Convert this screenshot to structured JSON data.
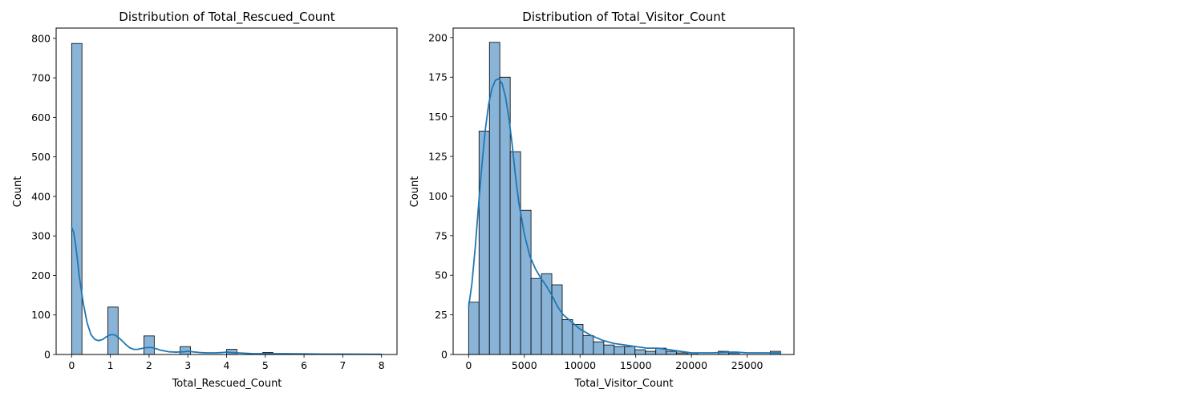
{
  "chart_data": [
    {
      "type": "bar",
      "subtype": "histogram-with-kde",
      "title": "Distribution of Total_Rescued_Count",
      "xlabel": "Total_Rescued_Count",
      "ylabel": "Count",
      "xlim": [
        -0.4,
        8.4
      ],
      "ylim": [
        0,
        826
      ],
      "xticks": [
        0,
        1,
        2,
        3,
        4,
        5,
        6,
        7,
        8
      ],
      "yticks": [
        0,
        100,
        200,
        300,
        400,
        500,
        600,
        700,
        800
      ],
      "grid": false,
      "bar_color": "#89b4d8",
      "line_color": "#1f77b4",
      "bins": [
        {
          "x0": 0.0,
          "x1": 0.2667,
          "count": 787
        },
        {
          "x0": 0.9333,
          "x1": 1.2,
          "count": 120
        },
        {
          "x0": 1.8667,
          "x1": 2.1333,
          "count": 47
        },
        {
          "x0": 2.8,
          "x1": 3.0667,
          "count": 20
        },
        {
          "x0": 4.0,
          "x1": 4.2667,
          "count": 13
        },
        {
          "x0": 4.9333,
          "x1": 5.2,
          "count": 5
        },
        {
          "x0": 5.8667,
          "x1": 6.1333,
          "count": 2
        },
        {
          "x0": 6.8,
          "x1": 7.0667,
          "count": 1
        },
        {
          "x0": 7.7333,
          "x1": 8.0,
          "count": 1
        }
      ],
      "kde": {
        "x": [
          0,
          0.05,
          0.1,
          0.15,
          0.2,
          0.3,
          0.4,
          0.5,
          0.6,
          0.7,
          0.8,
          0.9,
          1.0,
          1.1,
          1.2,
          1.3,
          1.4,
          1.5,
          1.6,
          1.7,
          1.8,
          1.9,
          2.0,
          2.1,
          2.2,
          2.3,
          2.5,
          2.7,
          2.9,
          3.0,
          3.1,
          3.3,
          3.5,
          3.7,
          3.9,
          4.0,
          4.1,
          4.3,
          4.5,
          4.7,
          5.0,
          5.5,
          6.0,
          6.5,
          7.0,
          7.5,
          8.0
        ],
        "y": [
          322,
          310,
          280,
          240,
          195,
          130,
          80,
          50,
          38,
          35,
          38,
          45,
          50,
          50,
          44,
          35,
          25,
          17,
          13,
          13,
          15,
          17,
          18,
          17,
          14,
          11,
          7,
          6,
          7,
          8,
          7,
          5,
          4,
          4,
          5,
          6,
          5,
          4,
          3,
          2,
          2,
          2,
          1.5,
          1,
          1,
          0.8,
          0.5
        ]
      }
    },
    {
      "type": "bar",
      "subtype": "histogram-with-kde",
      "title": "Distribution of Total_Visitor_Count",
      "xlabel": "Total_Visitor_Count",
      "ylabel": "Count",
      "xlim": [
        -1390,
        29200
      ],
      "ylim": [
        0,
        206
      ],
      "xticks": [
        0,
        5000,
        10000,
        15000,
        20000,
        25000
      ],
      "yticks": [
        0,
        25,
        50,
        75,
        100,
        125,
        150,
        175,
        200
      ],
      "grid": false,
      "bar_color": "#89b4d8",
      "line_color": "#1f77b4",
      "bin_start": 0,
      "bin_width": 933.3,
      "counts": [
        33,
        141,
        197,
        175,
        128,
        91,
        48,
        51,
        44,
        22,
        19,
        12,
        8,
        6,
        5,
        5,
        3,
        2,
        4,
        2,
        1,
        1,
        0,
        0,
        2,
        1,
        0,
        0,
        0,
        2
      ],
      "kde": {
        "x": [
          0,
          300,
          600,
          900,
          1200,
          1500,
          1800,
          2100,
          2400,
          2700,
          3000,
          3300,
          3600,
          3900,
          4200,
          4500,
          5000,
          5500,
          6000,
          6500,
          7000,
          7500,
          8000,
          8500,
          9000,
          9500,
          10000,
          11000,
          12000,
          13000,
          14000,
          15000,
          16000,
          17000,
          18000,
          19000,
          20000,
          21000,
          22000,
          23000,
          24000,
          25000,
          26000,
          27000,
          28000
        ],
        "y": [
          30,
          45,
          68,
          95,
          120,
          142,
          158,
          168,
          173,
          174,
          171,
          163,
          150,
          133,
          113,
          96,
          76,
          62,
          54,
          48,
          43,
          37,
          30,
          25,
          22,
          19,
          16,
          12,
          9,
          7,
          6,
          5,
          4,
          4,
          3,
          2,
          1,
          1,
          1,
          1.5,
          1.5,
          1,
          1,
          1,
          1
        ]
      }
    }
  ]
}
